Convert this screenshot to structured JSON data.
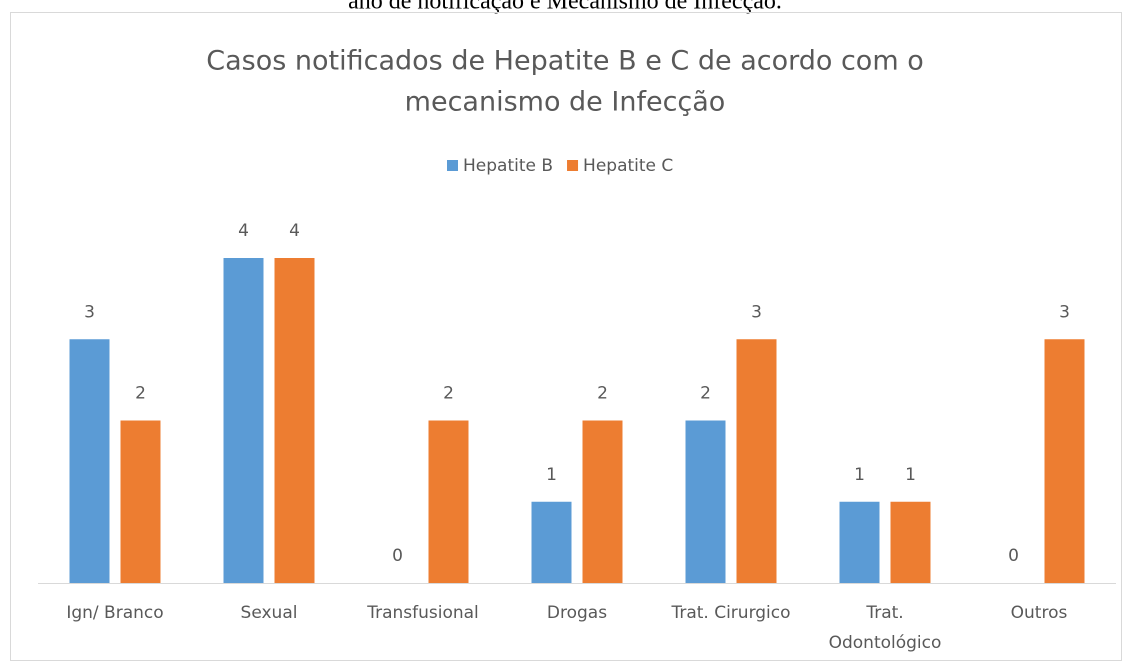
{
  "caption": "ano de notificação e Mecanismo de Infecção.",
  "chart_data": {
    "type": "bar",
    "title": [
      "Casos notificados de Hepatite B e C de acordo com o",
      "mecanismo de Infecção"
    ],
    "categories": [
      "Ign/ Branco",
      "Sexual",
      "Transfusional",
      "Drogas",
      "Trat. Cirurgico",
      "Trat. Odontológico",
      "Outros"
    ],
    "series": [
      {
        "name": "Hepatite B",
        "color": "#5b9bd5",
        "values": [
          3,
          4,
          0,
          1,
          2,
          1,
          0
        ]
      },
      {
        "name": "Hepatite C",
        "color": "#ed7d31",
        "values": [
          2,
          4,
          2,
          2,
          3,
          1,
          3
        ]
      }
    ],
    "ylim": [
      0,
      4
    ],
    "legend": "top"
  }
}
